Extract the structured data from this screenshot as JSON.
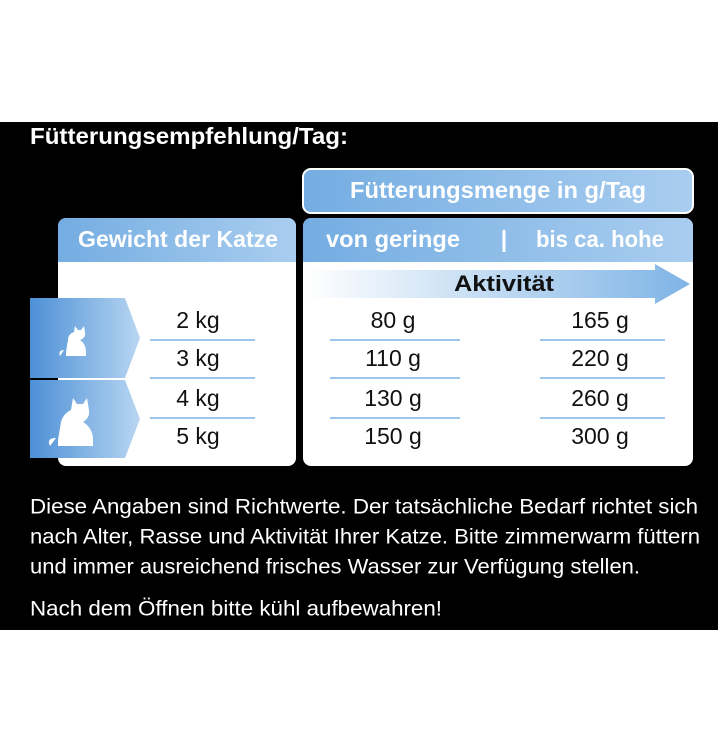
{
  "title": "Fütterungsempfehlung/Tag:",
  "table": {
    "quantity_header": "Fütterungsmenge in g/Tag",
    "weight_header": "Gewicht der Katze",
    "activity_low": "von geringe",
    "separator": "|",
    "activity_high": "bis ca. hohe",
    "activity_label": "Aktivität",
    "rows": [
      [
        "2 kg",
        "80 g",
        "165 g"
      ],
      [
        "3 kg",
        "110 g",
        "220 g"
      ],
      [
        "4 kg",
        "130 g",
        "260 g"
      ],
      [
        "5 kg",
        "150 g",
        "300 g"
      ]
    ]
  },
  "notes": {
    "lines": [
      "Diese Angaben sind Richtwerte. Der tatsächliche Bedarf richtet sich",
      "nach Alter, Rasse und Aktivität Ihrer Katze. Bitte zimmerwarm füttern",
      "und immer ausreichend frisches Wasser zur Verfügung stellen."
    ],
    "storage": "Nach dem Öffnen bitte kühl aufbewahren!"
  }
}
